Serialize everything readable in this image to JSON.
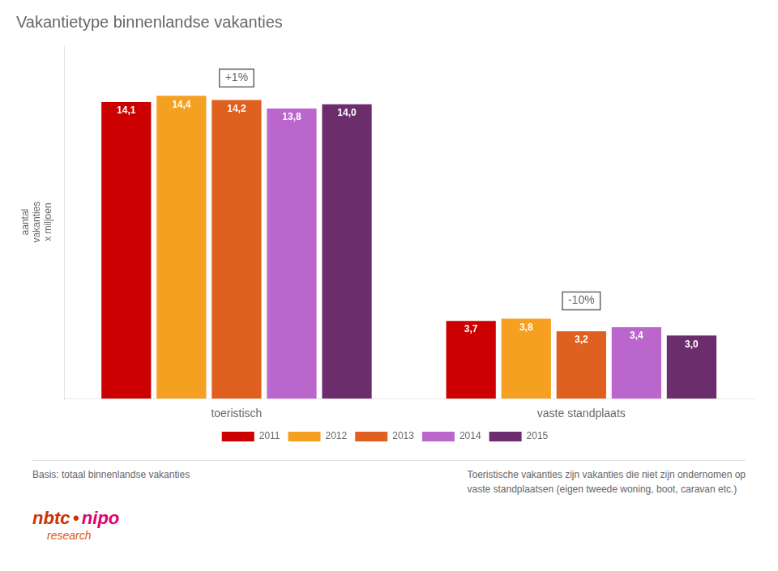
{
  "chart_data": {
    "type": "bar",
    "title": "Vakantietype binnenlandse vakanties",
    "ylabel": "aantal\nvakanties\nx miljoen",
    "categories": [
      "toeristisch",
      "vaste standplaats"
    ],
    "series": [
      {
        "name": "2011",
        "color": "#cc0000",
        "values": [
          14.1,
          3.7
        ],
        "value_labels": [
          "14,1",
          "3,7"
        ]
      },
      {
        "name": "2012",
        "color": "#f5a020",
        "values": [
          14.4,
          3.8
        ],
        "value_labels": [
          "14,4",
          "3,8"
        ]
      },
      {
        "name": "2013",
        "color": "#e06020",
        "values": [
          14.2,
          3.2
        ],
        "value_labels": [
          "14,2",
          "3,2"
        ]
      },
      {
        "name": "2014",
        "color": "#bb66cc",
        "values": [
          13.8,
          3.4
        ],
        "value_labels": [
          "13,8",
          "3,4"
        ]
      },
      {
        "name": "2015",
        "color": "#6b2d6b",
        "values": [
          14.0,
          3.0
        ],
        "value_labels": [
          "14,0",
          "3,0"
        ]
      }
    ],
    "annotations": [
      {
        "text": "+1%",
        "category": "toeristisch"
      },
      {
        "text": "-10%",
        "category": "vaste standplaats"
      }
    ],
    "basis": "Basis: totaal binnenlandse vakanties",
    "footnote": [
      "Toeristische vakanties zijn vakanties die niet zijn ondernomen op",
      "vaste standplaatsen (eigen tweede woning, boot, caravan etc.)"
    ],
    "logo": [
      "nbtc",
      "•",
      "nipo",
      "research"
    ],
    "ylim": [
      0,
      16.8
    ],
    "grid": false,
    "legend": "bottom",
    "data_labels": true,
    "tick_labels": "x"
  }
}
